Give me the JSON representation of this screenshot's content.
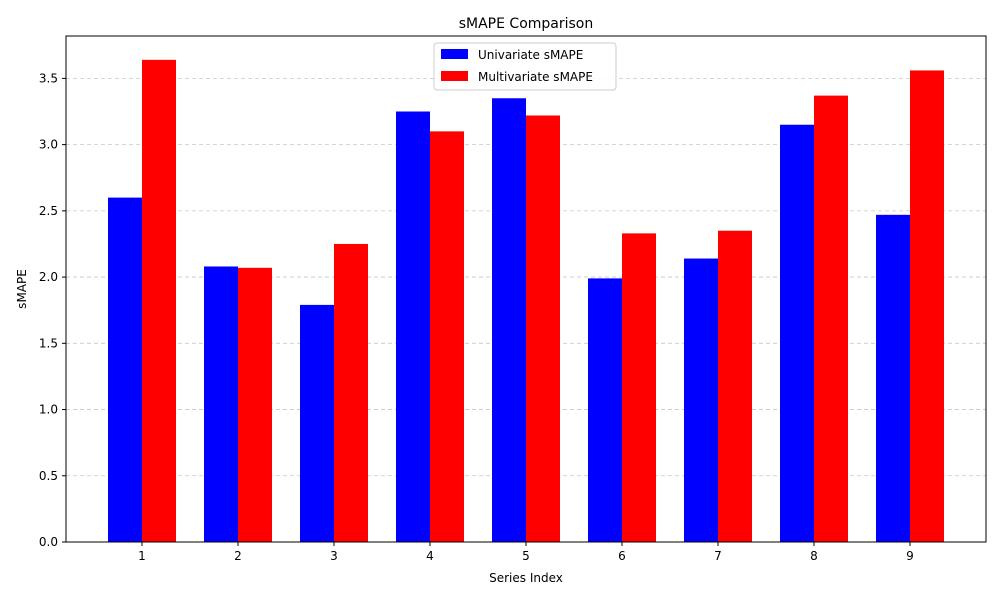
{
  "chart_data": {
    "type": "bar",
    "title": "sMAPE Comparison",
    "xlabel": "Series Index",
    "ylabel": "sMAPE",
    "categories": [
      "1",
      "2",
      "3",
      "4",
      "5",
      "6",
      "7",
      "8",
      "9"
    ],
    "series": [
      {
        "name": "Univariate sMAPE",
        "color": "#0000ff",
        "values": [
          2.6,
          2.08,
          1.79,
          3.25,
          3.35,
          1.99,
          2.14,
          3.15,
          2.47
        ]
      },
      {
        "name": "Multivariate sMAPE",
        "color": "#ff0000",
        "values": [
          3.64,
          2.07,
          2.25,
          3.1,
          3.22,
          2.33,
          2.35,
          3.37,
          3.56
        ]
      }
    ],
    "ylim": [
      0,
      3.82
    ],
    "yticks": [
      "0.0",
      "0.5",
      "1.0",
      "1.5",
      "2.0",
      "2.5",
      "3.0",
      "3.5"
    ],
    "grid": "y-dashed",
    "legend_position": "top-center"
  }
}
